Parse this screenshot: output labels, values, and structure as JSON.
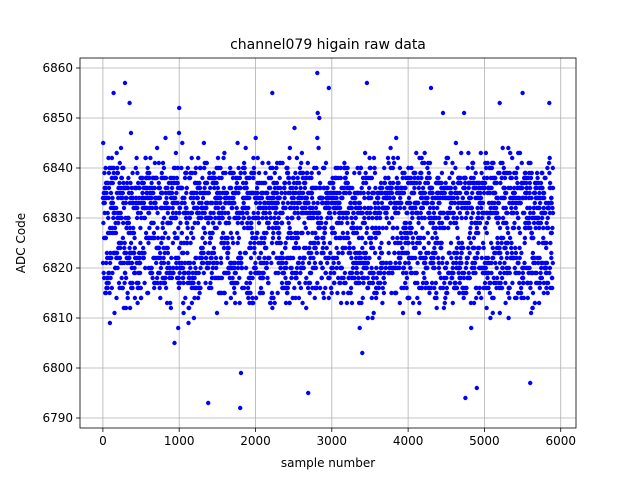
{
  "chart_data": {
    "type": "scatter",
    "title": "channel079 higain raw data",
    "xlabel": "sample number",
    "ylabel": "ADC Code",
    "xlim": [
      -300,
      6200
    ],
    "ylim": [
      6788,
      6862
    ],
    "xticks": [
      0,
      1000,
      2000,
      3000,
      4000,
      5000,
      6000
    ],
    "yticks": [
      6790,
      6800,
      6810,
      6820,
      6830,
      6840,
      6850,
      6860
    ],
    "xtick_labels": [
      "0",
      "1000",
      "2000",
      "3000",
      "4000",
      "5000",
      "6000"
    ],
    "ytick_labels": [
      "6790",
      "6800",
      "6810",
      "6820",
      "6830",
      "6840",
      "6850",
      "6860"
    ],
    "grid": true,
    "marker_color": "#0000ff",
    "series": [
      {
        "n_points": 5900,
        "x_range": [
          0,
          5900
        ],
        "y_typical_range": [
          6810,
          6843
        ],
        "y_mean": 6829,
        "outliers": [
          {
            "x": 140,
            "y": 6855
          },
          {
            "x": 290,
            "y": 6857
          },
          {
            "x": 350,
            "y": 6853
          },
          {
            "x": 1000,
            "y": 6852
          },
          {
            "x": 1380,
            "y": 6793
          },
          {
            "x": 1800,
            "y": 6792
          },
          {
            "x": 1810,
            "y": 6799
          },
          {
            "x": 2220,
            "y": 6855
          },
          {
            "x": 2690,
            "y": 6795
          },
          {
            "x": 2810,
            "y": 6859
          },
          {
            "x": 2960,
            "y": 6856
          },
          {
            "x": 3460,
            "y": 6857
          },
          {
            "x": 4300,
            "y": 6856
          },
          {
            "x": 4750,
            "y": 6794
          },
          {
            "x": 4900,
            "y": 6796
          },
          {
            "x": 5200,
            "y": 6853
          },
          {
            "x": 5500,
            "y": 6855
          },
          {
            "x": 5600,
            "y": 6797
          },
          {
            "x": 5850,
            "y": 6853
          }
        ]
      }
    ]
  }
}
